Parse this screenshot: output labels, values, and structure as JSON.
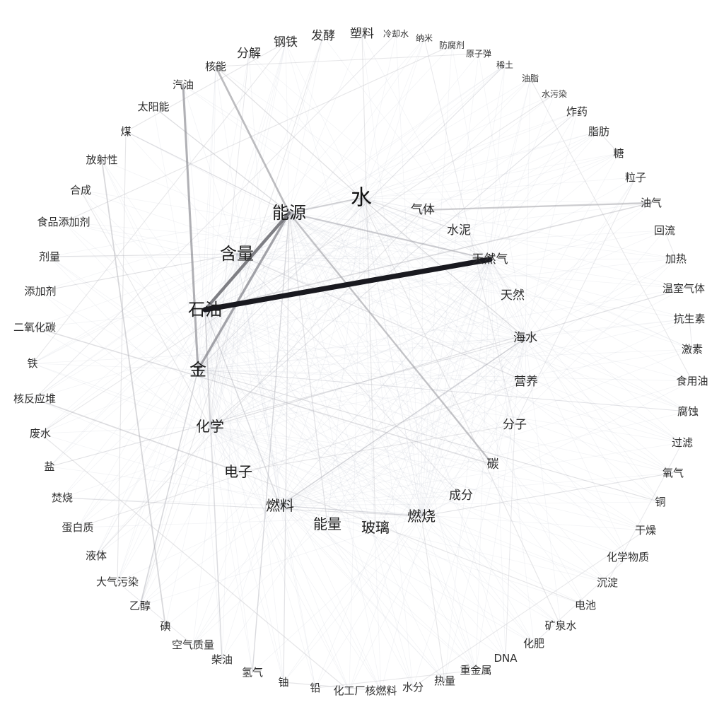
{
  "nodes": [
    {
      "id": "water",
      "label": "水",
      "level": 1
    },
    {
      "id": "energy",
      "label": "能源",
      "level": 2
    },
    {
      "id": "content",
      "label": "含量",
      "level": 2
    },
    {
      "id": "petroleum",
      "label": "石油",
      "level": 2
    },
    {
      "id": "gold",
      "label": "金",
      "level": 2
    },
    {
      "id": "gas",
      "label": "气体",
      "level": 4
    },
    {
      "id": "cement",
      "label": "水泥",
      "level": 4
    },
    {
      "id": "natural-gas",
      "label": "天然气",
      "level": 4
    },
    {
      "id": "natural",
      "label": "天然",
      "level": 4
    },
    {
      "id": "seawater",
      "label": "海水",
      "level": 4
    },
    {
      "id": "nutrition",
      "label": "营养",
      "level": 4
    },
    {
      "id": "molecule",
      "label": "分子",
      "level": 4
    },
    {
      "id": "carbon",
      "label": "碳",
      "level": 4
    },
    {
      "id": "ingredient",
      "label": "成分",
      "level": 4
    },
    {
      "id": "combustion",
      "label": "燃烧",
      "level": 3
    },
    {
      "id": "glass",
      "label": "玻璃",
      "level": 3
    },
    {
      "id": "power",
      "label": "能量",
      "level": 3
    },
    {
      "id": "fuel",
      "label": "燃料",
      "level": 3
    },
    {
      "id": "electron",
      "label": "电子",
      "level": 3
    },
    {
      "id": "chemistry",
      "label": "化学",
      "level": 3
    },
    {
      "id": "nuclear-energy",
      "label": "核能",
      "level": 5
    },
    {
      "id": "decompose",
      "label": "分解",
      "level": 4
    },
    {
      "id": "steel",
      "label": "钢铁",
      "level": 4
    },
    {
      "id": "ferment",
      "label": "发酵",
      "level": 4
    },
    {
      "id": "plastic",
      "label": "塑料",
      "level": 4
    },
    {
      "id": "coolant",
      "label": "冷却水",
      "level": 6
    },
    {
      "id": "nano",
      "label": "纳米",
      "level": 6
    },
    {
      "id": "preservative",
      "label": "防腐剂",
      "level": 6
    },
    {
      "id": "atomic-bomb",
      "label": "原子弹",
      "level": 6
    },
    {
      "id": "rare-earth",
      "label": "稀土",
      "level": 6
    },
    {
      "id": "grease",
      "label": "油脂",
      "level": 6
    },
    {
      "id": "water-pollution",
      "label": "水污染",
      "level": 6
    },
    {
      "id": "explosive",
      "label": "炸药",
      "level": 5
    },
    {
      "id": "fat",
      "label": "脂肪",
      "level": 5
    },
    {
      "id": "sugar",
      "label": "糖",
      "level": 5
    },
    {
      "id": "particle",
      "label": "粒子",
      "level": 5
    },
    {
      "id": "oil-gas",
      "label": "油气",
      "level": 5
    },
    {
      "id": "reflux",
      "label": "回流",
      "level": 5
    },
    {
      "id": "heating",
      "label": "加热",
      "level": 5
    },
    {
      "id": "greenhouse-gas",
      "label": "温室气体",
      "level": 5
    },
    {
      "id": "antibiotic",
      "label": "抗生素",
      "level": 5
    },
    {
      "id": "hormone",
      "label": "激素",
      "level": 5
    },
    {
      "id": "edible-oil",
      "label": "食用油",
      "level": 5
    },
    {
      "id": "corrosion",
      "label": "腐蚀",
      "level": 5
    },
    {
      "id": "filtration",
      "label": "过滤",
      "level": 5
    },
    {
      "id": "oxygen",
      "label": "氧气",
      "level": 5
    },
    {
      "id": "copper",
      "label": "铜",
      "level": 5
    },
    {
      "id": "dry",
      "label": "干燥",
      "level": 5
    },
    {
      "id": "chemicals",
      "label": "化学物质",
      "level": 5
    },
    {
      "id": "precipitate",
      "label": "沉淀",
      "level": 5
    },
    {
      "id": "battery",
      "label": "电池",
      "level": 5
    },
    {
      "id": "mineral-water",
      "label": "矿泉水",
      "level": 5
    },
    {
      "id": "fertilizer",
      "label": "化肥",
      "level": 5
    },
    {
      "id": "dna",
      "label": "DNA",
      "level": 5
    },
    {
      "id": "heavy-metal",
      "label": "重金属",
      "level": 5
    },
    {
      "id": "heat",
      "label": "热量",
      "level": 5
    },
    {
      "id": "moisture",
      "label": "水分",
      "level": 5
    },
    {
      "id": "nuclear-fuel",
      "label": "核燃料",
      "level": 5
    },
    {
      "id": "chemical-plant",
      "label": "化工厂",
      "level": 5
    },
    {
      "id": "lead",
      "label": "铅",
      "level": 5
    },
    {
      "id": "uranium",
      "label": "铀",
      "level": 5
    },
    {
      "id": "hydrogen",
      "label": "氢气",
      "level": 5
    },
    {
      "id": "diesel",
      "label": "柴油",
      "level": 5
    },
    {
      "id": "air-quality",
      "label": "空气质量",
      "level": 5
    },
    {
      "id": "iodine",
      "label": "碘",
      "level": 5
    },
    {
      "id": "ethanol",
      "label": "乙醇",
      "level": 5
    },
    {
      "id": "air-pollution",
      "label": "大气污染",
      "level": 5
    },
    {
      "id": "liquid",
      "label": "液体",
      "level": 5
    },
    {
      "id": "protein",
      "label": "蛋白质",
      "level": 5
    },
    {
      "id": "incineration",
      "label": "焚烧",
      "level": 5
    },
    {
      "id": "salt",
      "label": "盐",
      "level": 5
    },
    {
      "id": "wastewater",
      "label": "废水",
      "level": 5
    },
    {
      "id": "nuclear-reactor",
      "label": "核反应堆",
      "level": 5
    },
    {
      "id": "iron",
      "label": "铁",
      "level": 5
    },
    {
      "id": "carbon-dioxide",
      "label": "二氧化碳",
      "level": 5
    },
    {
      "id": "additive",
      "label": "添加剂",
      "level": 5
    },
    {
      "id": "dosage",
      "label": "剂量",
      "level": 5
    },
    {
      "id": "food-additive",
      "label": "食品添加剂",
      "level": 5
    },
    {
      "id": "synthesis",
      "label": "合成",
      "level": 5
    },
    {
      "id": "radioactivity",
      "label": "放射性",
      "level": 5
    },
    {
      "id": "coal",
      "label": "煤",
      "level": 5
    },
    {
      "id": "solar-energy",
      "label": "太阳能",
      "level": 5
    },
    {
      "id": "gasoline",
      "label": "汽油",
      "level": 5
    }
  ],
  "edges": [
    {
      "from": "petroleum",
      "to": "natural-gas",
      "weight": 1.0
    },
    {
      "from": "petroleum",
      "to": "energy",
      "weight": 0.55
    },
    {
      "from": "gold",
      "to": "energy",
      "weight": 0.4
    },
    {
      "from": "gold",
      "to": "gasoline",
      "weight": 0.35
    },
    {
      "from": "energy",
      "to": "nuclear-energy",
      "weight": 0.3
    },
    {
      "from": "energy",
      "to": "carbon",
      "weight": 0.25
    },
    {
      "from": "energy",
      "to": "natural-gas",
      "weight": 0.2
    },
    {
      "from": "energy",
      "to": "water",
      "weight": 0.18
    },
    {
      "from": "gas",
      "to": "oil-gas",
      "weight": 0.22
    },
    {
      "from": "petroleum",
      "to": "oil-gas",
      "weight": 0.12
    },
    {
      "from": "radioactivity",
      "to": "iodine",
      "weight": 0.15
    },
    {
      "from": "fuel",
      "to": "seawater",
      "weight": 0.12
    },
    {
      "from": "nuclear-reactor",
      "to": "electron",
      "weight": 0.12
    },
    {
      "from": "carbon-dioxide",
      "to": "carbon",
      "weight": 0.1
    },
    {
      "from": "gold",
      "to": "ethanol",
      "weight": 0.12
    },
    {
      "from": "hydrogen",
      "to": "energy",
      "weight": 0.1
    },
    {
      "from": "diesel",
      "to": "petroleum",
      "weight": 0.1
    },
    {
      "from": "nuclear-energy",
      "to": "water",
      "weight": 0.08
    },
    {
      "from": "solar-energy",
      "to": "energy",
      "weight": 0.08
    },
    {
      "from": "coal",
      "to": "energy",
      "weight": 0.07
    },
    {
      "from": "greenhouse-gas",
      "to": "chemistry",
      "weight": 0.06
    },
    {
      "from": "petroleum",
      "to": "chemistry",
      "weight": 0.08
    },
    {
      "from": "content",
      "to": "nutrition",
      "weight": 0.07
    },
    {
      "from": "water",
      "to": "cement",
      "weight": 0.07
    },
    {
      "from": "water",
      "to": "seawater",
      "weight": 0.08
    },
    {
      "from": "chemical-plant",
      "to": "wastewater",
      "weight": 0.06
    },
    {
      "from": "fuel",
      "to": "petroleum",
      "weight": 0.08
    },
    {
      "from": "combustion",
      "to": "fuel",
      "weight": 0.07
    },
    {
      "from": "power",
      "to": "energy",
      "weight": 0.07
    },
    {
      "from": "uranium",
      "to": "energy",
      "weight": 0.07
    },
    {
      "from": "nuclear-fuel",
      "to": "uranium",
      "weight": 0.06
    },
    {
      "from": "glass",
      "to": "plastic",
      "weight": 0.05
    },
    {
      "from": "steel",
      "to": "coal",
      "weight": 0.05
    },
    {
      "from": "molecule",
      "to": "electron",
      "weight": 0.05
    },
    {
      "from": "air-pollution",
      "to": "coal",
      "weight": 0.05
    },
    {
      "from": "food-additive",
      "to": "preservative",
      "weight": 0.05
    },
    {
      "from": "additive",
      "to": "content",
      "weight": 0.05
    },
    {
      "from": "dosage",
      "to": "content",
      "weight": 0.05
    },
    {
      "from": "battery",
      "to": "electron",
      "weight": 0.05
    },
    {
      "from": "gold",
      "to": "copper",
      "weight": 0.05
    },
    {
      "from": "heat",
      "to": "combustion",
      "weight": 0.05
    },
    {
      "from": "mineral-water",
      "to": "water",
      "weight": 0.05
    },
    {
      "from": "heavy-metal",
      "to": "lead",
      "weight": 0.04
    },
    {
      "from": "protein",
      "to": "nutrition",
      "weight": 0.04
    },
    {
      "from": "sugar",
      "to": "fat",
      "weight": 0.04
    },
    {
      "from": "edible-oil",
      "to": "grease",
      "weight": 0.04
    },
    {
      "from": "water-pollution",
      "to": "wastewater",
      "weight": 0.04
    },
    {
      "from": "atomic-bomb",
      "to": "nuclear-energy",
      "weight": 0.04
    },
    {
      "from": "ferment",
      "to": "ethanol",
      "weight": 0.04
    },
    {
      "from": "iron",
      "to": "steel",
      "weight": 0.04
    },
    {
      "from": "salt",
      "to": "seawater",
      "weight": 0.04
    },
    {
      "from": "liquid",
      "to": "gas",
      "weight": 0.04
    },
    {
      "from": "oxygen",
      "to": "combustion",
      "weight": 0.04
    },
    {
      "from": "moisture",
      "to": "dry",
      "weight": 0.04
    },
    {
      "from": "synthesis",
      "to": "chemistry",
      "weight": 0.04
    },
    {
      "from": "incineration",
      "to": "combustion",
      "weight": 0.04
    },
    {
      "from": "precipitate",
      "to": "filtration",
      "weight": 0.03
    },
    {
      "from": "heating",
      "to": "reflux",
      "weight": 0.03
    },
    {
      "from": "fertilizer",
      "to": "chemicals",
      "weight": 0.03
    },
    {
      "from": "dna",
      "to": "molecule",
      "weight": 0.03
    },
    {
      "from": "hormone",
      "to": "antibiotic",
      "weight": 0.03
    },
    {
      "from": "particle",
      "to": "molecule",
      "weight": 0.03
    },
    {
      "from": "explosive",
      "to": "chemistry",
      "weight": 0.03
    },
    {
      "from": "rare-earth",
      "to": "gold",
      "weight": 0.03
    },
    {
      "from": "nano",
      "to": "molecule",
      "weight": 0.03
    },
    {
      "from": "coolant",
      "to": "nuclear-reactor",
      "weight": 0.03
    },
    {
      "from": "decompose",
      "to": "chemistry",
      "weight": 0.03
    },
    {
      "from": "corrosion",
      "to": "gold",
      "weight": 0.03
    },
    {
      "from": "air-quality",
      "to": "air-pollution",
      "weight": 0.03
    },
    {
      "from": "ingredient",
      "to": "content",
      "weight": 0.03
    },
    {
      "from": "natural",
      "to": "natural-gas",
      "weight": 0.03
    }
  ]
}
